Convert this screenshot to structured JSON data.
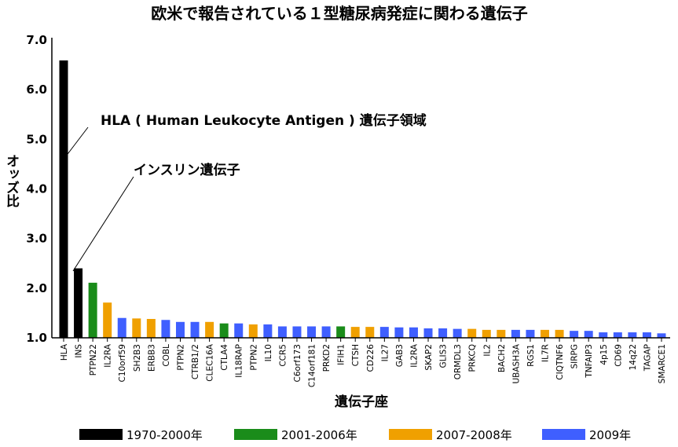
{
  "chart_data": {
    "type": "bar",
    "title": "欧米で報告されている１型糖尿病発症に関わる遺伝子",
    "xlabel": "遺伝子座",
    "ylabel": "オッズ比",
    "ylim": [
      1.0,
      7.0
    ],
    "yticks": [
      "1.0",
      "2.0",
      "3.0",
      "4.0",
      "5.0",
      "6.0",
      "7.0"
    ],
    "grid": false,
    "legend_position": "bottom",
    "categories": [
      "HLA",
      "INS",
      "PTPN22",
      "IL2RA",
      "C10orf59",
      "SH2B3",
      "ERBB3",
      "COBL",
      "PTPN2",
      "CTRB1/2",
      "CLEC16A",
      "CTLA4",
      "IL18RAP",
      "PTPN2",
      "IL10",
      "CCR5",
      "C6orf173",
      "C14orf181",
      "PRKD2",
      "IFIH1",
      "CTSH",
      "CD226",
      "IL27",
      "GAB3",
      "IL2RA",
      "SKAP2",
      "GLIS3",
      "ORMDL3",
      "PRKCQ",
      "IL2",
      "BACH2",
      "UBASH3A",
      "RGS1",
      "IL7R",
      "CIQTNF6",
      "SIRPG",
      "TNFAIP3",
      "4p15",
      "CD69",
      "14q22",
      "TAGAP",
      "SMARCE1"
    ],
    "values": [
      6.59,
      2.4,
      2.11,
      1.71,
      1.4,
      1.39,
      1.38,
      1.36,
      1.32,
      1.32,
      1.32,
      1.29,
      1.29,
      1.27,
      1.27,
      1.23,
      1.23,
      1.23,
      1.23,
      1.23,
      1.22,
      1.22,
      1.22,
      1.21,
      1.21,
      1.19,
      1.19,
      1.18,
      1.18,
      1.16,
      1.16,
      1.16,
      1.16,
      1.16,
      1.16,
      1.14,
      1.14,
      1.11,
      1.11,
      1.11,
      1.11,
      1.09
    ],
    "groups": [
      0,
      0,
      1,
      2,
      3,
      2,
      2,
      3,
      3,
      3,
      2,
      1,
      3,
      2,
      3,
      3,
      3,
      3,
      3,
      1,
      2,
      2,
      3,
      3,
      3,
      3,
      3,
      3,
      2,
      2,
      2,
      3,
      3,
      2,
      2,
      3,
      3,
      3,
      3,
      3,
      3,
      3
    ],
    "series": [
      {
        "name": "1970-2000年",
        "color": "#000000"
      },
      {
        "name": "2001-2006年",
        "color": "#1a8c1a"
      },
      {
        "name": "2007-2008年",
        "color": "#f0a000"
      },
      {
        "name": "2009年",
        "color": "#3f5fff"
      }
    ],
    "annotations": [
      {
        "text": "HLA ( Human Leukocyte Antigen ) 遺伝子領域",
        "target": "HLA"
      },
      {
        "text": "インスリン遺伝子",
        "target": "INS"
      }
    ]
  }
}
